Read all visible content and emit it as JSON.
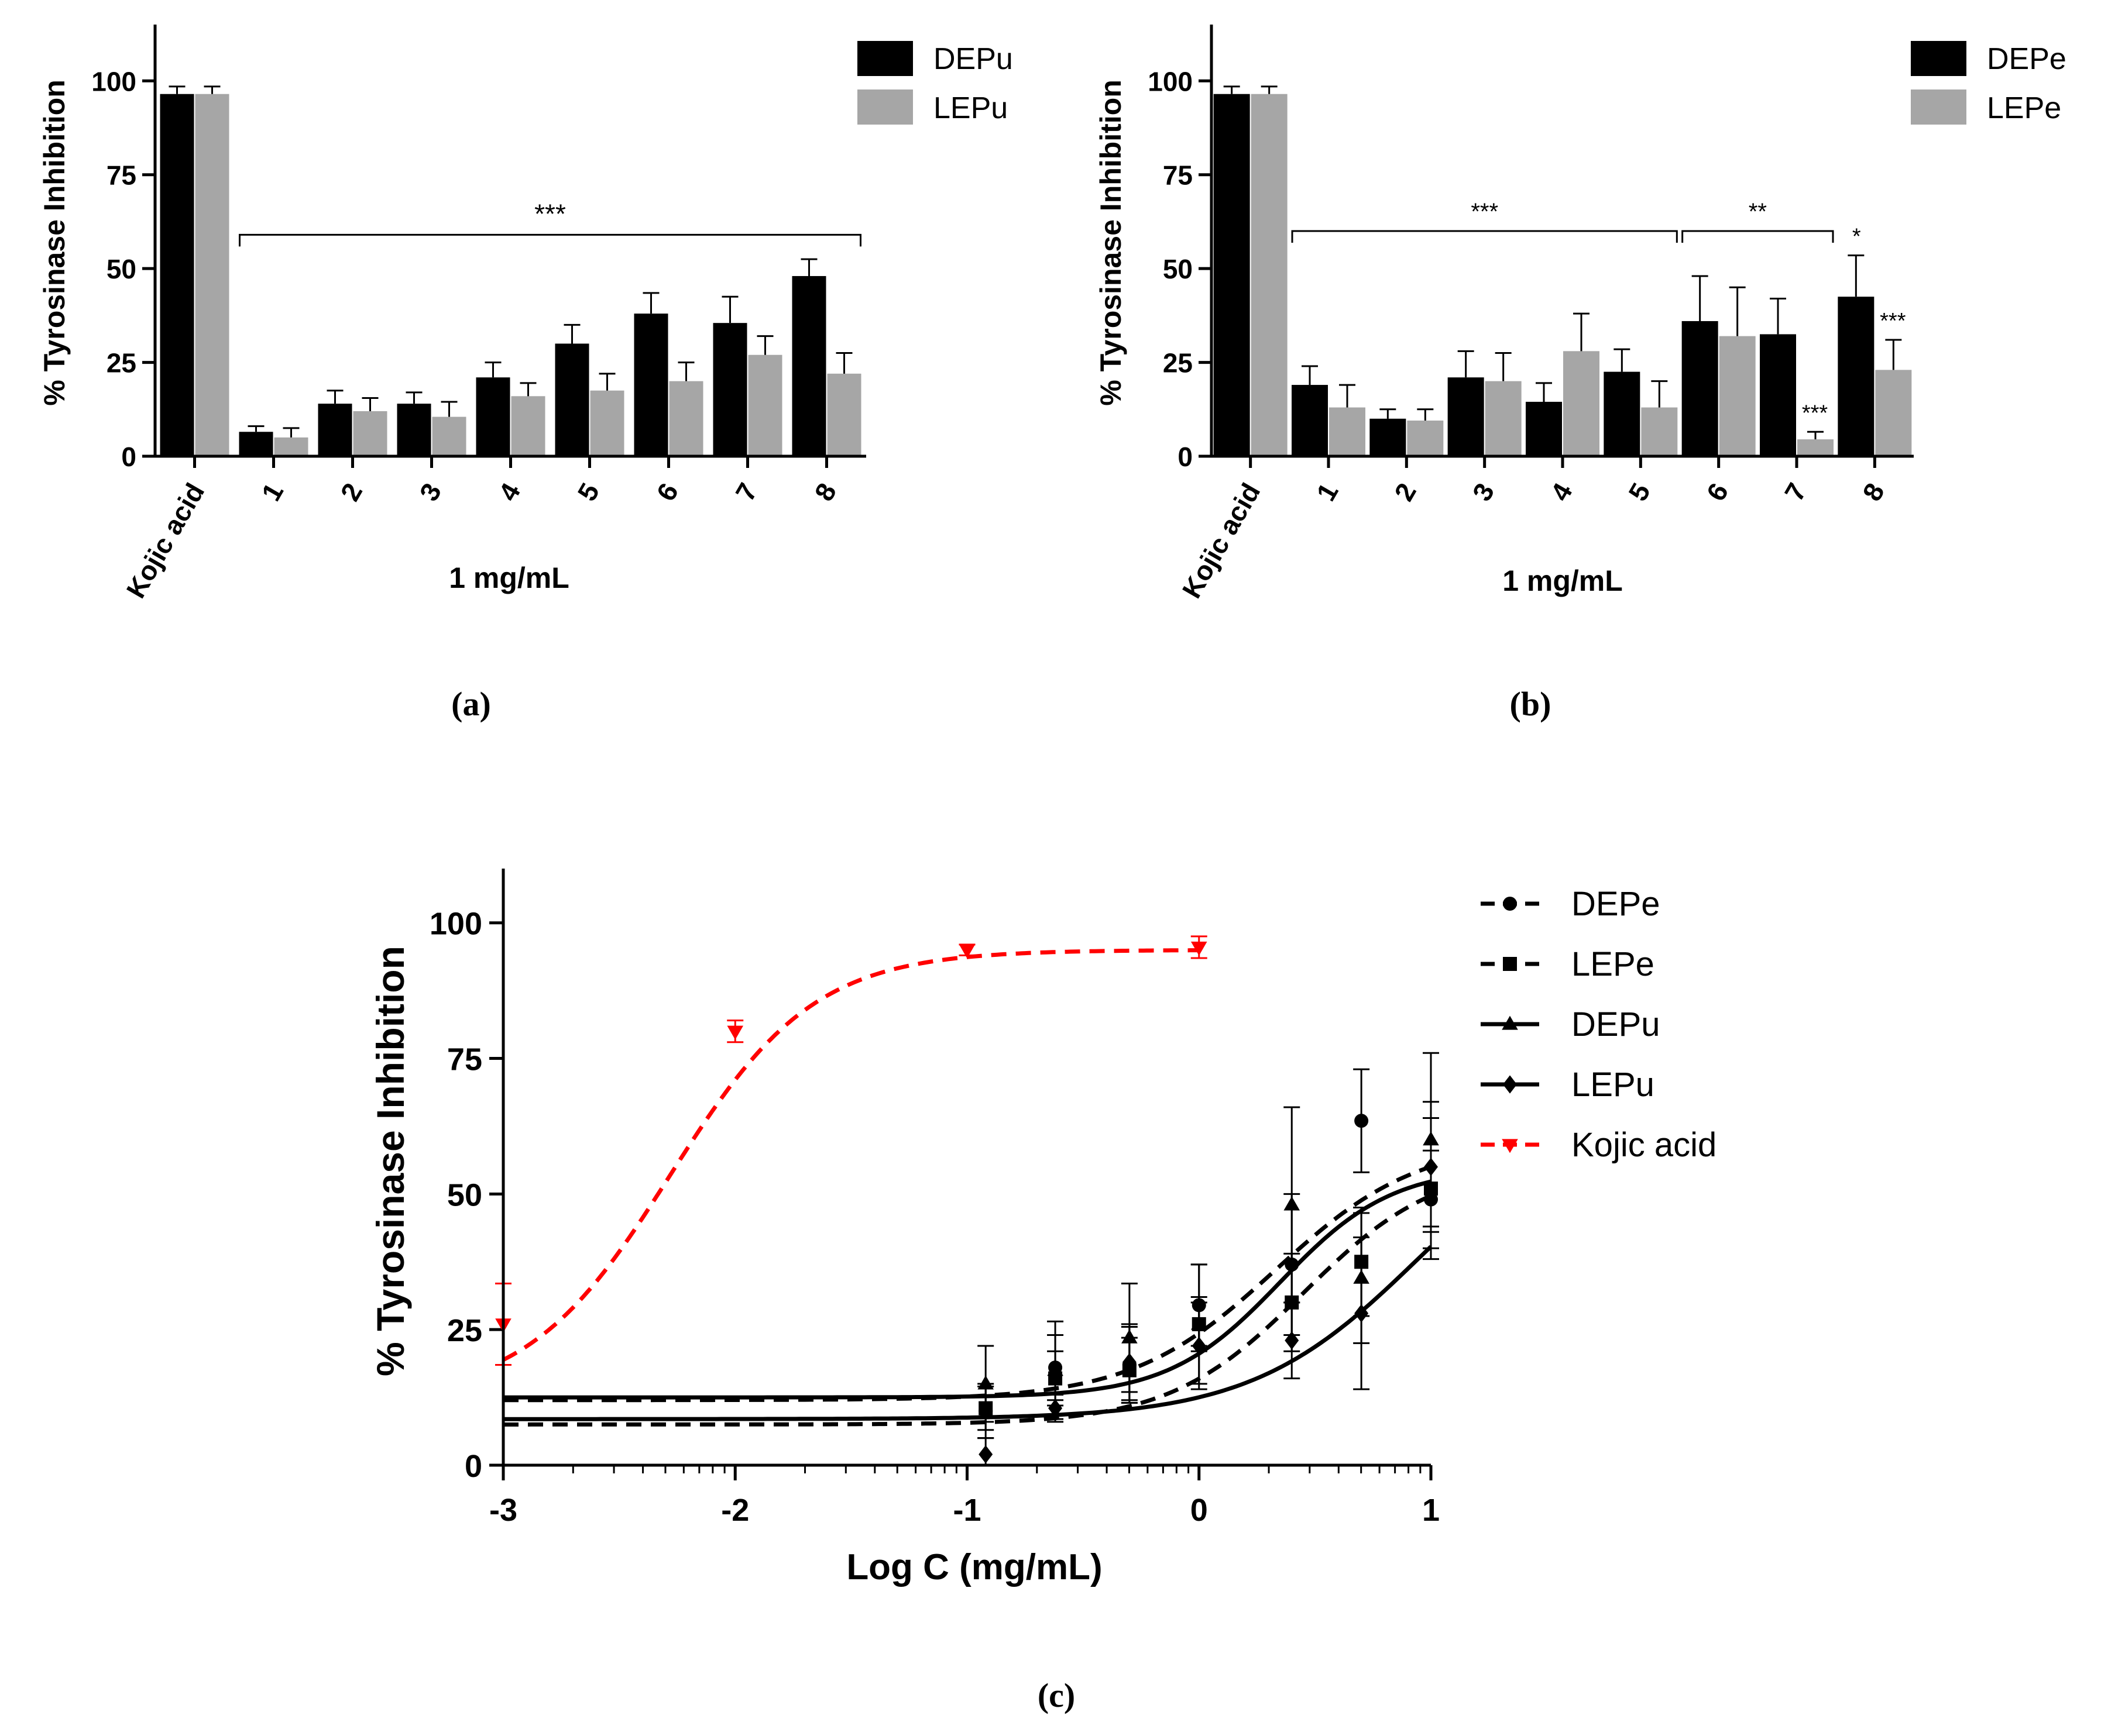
{
  "chart_data": [
    {
      "id": "a",
      "type": "bar",
      "caption": "(a)",
      "ylabel": "% Tyrosinase Inhibition",
      "xlabel": "1 mg/mL",
      "ylim": [
        0,
        115
      ],
      "yticks": [
        "0",
        "25",
        "50",
        "75",
        "100"
      ],
      "categories": [
        "Kojic acid",
        "1",
        "2",
        "3",
        "4",
        "5",
        "6",
        "7",
        "8"
      ],
      "series": [
        {
          "name": "DEPu",
          "color": "#000000",
          "values": [
            96.5,
            6.5,
            14,
            14,
            21,
            30,
            38,
            35.5,
            48
          ],
          "errors": [
            2,
            1.5,
            3.5,
            3,
            4,
            5,
            5.5,
            7,
            4.5
          ]
        },
        {
          "name": "LEPu",
          "color": "#a6a6a6",
          "values": [
            96.5,
            5,
            12,
            10.5,
            16,
            17.5,
            20,
            27,
            22
          ],
          "errors": [
            2,
            2.5,
            3.5,
            4,
            3.5,
            4.5,
            5,
            5,
            5.5
          ]
        }
      ],
      "annotations": [
        {
          "text": "***",
          "type": "bracket",
          "from": 1,
          "to": 8,
          "y": 59
        }
      ]
    },
    {
      "id": "b",
      "type": "bar",
      "caption": "(b)",
      "ylabel": "% Tyrosinase Inhibition",
      "xlabel": "1 mg/mL",
      "ylim": [
        0,
        115
      ],
      "yticks": [
        "0",
        "25",
        "50",
        "75",
        "100"
      ],
      "categories": [
        "Kojic acid",
        "1",
        "2",
        "3",
        "4",
        "5",
        "6",
        "7",
        "8"
      ],
      "series": [
        {
          "name": "DEPe",
          "color": "#000000",
          "values": [
            96.5,
            19,
            10,
            21,
            14.5,
            22.5,
            36,
            32.5,
            42.5
          ],
          "errors": [
            2,
            5,
            2.5,
            7,
            5,
            6,
            12,
            9.5,
            11
          ]
        },
        {
          "name": "LEPe",
          "color": "#a6a6a6",
          "values": [
            96.5,
            13,
            9.5,
            20,
            28,
            13,
            32,
            4.5,
            23
          ],
          "errors": [
            2,
            6,
            3,
            7.5,
            10,
            7,
            13,
            2,
            8
          ]
        }
      ],
      "annotations": [
        {
          "text": "***",
          "type": "bracket",
          "from": 1,
          "to": 5,
          "y": 60
        },
        {
          "text": "**",
          "type": "bracket",
          "from": 6,
          "to": 7,
          "y": 60
        },
        {
          "text": "*",
          "type": "label",
          "category": 8,
          "series": 0
        },
        {
          "text": "***",
          "type": "label",
          "category": 8,
          "series": 1
        },
        {
          "text": "***",
          "type": "label",
          "category": 7,
          "series": 1
        }
      ]
    },
    {
      "id": "c",
      "type": "line",
      "caption": "(c)",
      "ylabel": "% Tyrosinase Inhibition",
      "xlabel": "Log C (mg/mL)",
      "xlim": [
        -3,
        1
      ],
      "ylim": [
        0,
        110
      ],
      "xticks": [
        "-3",
        "-2",
        "-1",
        "0",
        "1"
      ],
      "yticks": [
        "0",
        "25",
        "50",
        "75",
        "100"
      ],
      "series": [
        {
          "name": "DEPe",
          "color": "#000000",
          "dash": "dashed",
          "marker": "circle",
          "points": [
            [
              -0.92,
              10
            ],
            [
              -0.62,
              18
            ],
            [
              -0.3,
              18.5
            ],
            [
              0,
              29.5
            ],
            [
              0.4,
              37
            ],
            [
              0.7,
              63.5
            ],
            [
              1,
              49
            ]
          ],
          "errors": [
            5,
            6,
            7,
            7.5,
            13,
            9.5,
            9
          ],
          "fit": {
            "bottom": 12,
            "top": 60,
            "logec50": 0.33,
            "hill": 1.4
          }
        },
        {
          "name": "LEPe",
          "color": "#000000",
          "dash": "dashed",
          "marker": "square",
          "points": [
            [
              -0.92,
              10.5
            ],
            [
              -0.62,
              16
            ],
            [
              -0.3,
              17.5
            ],
            [
              0,
              26
            ],
            [
              0.4,
              30
            ],
            [
              0.7,
              37.5
            ],
            [
              1,
              51
            ]
          ],
          "errors": [
            4,
            5,
            6,
            5,
            9,
            10,
            13
          ],
          "fit": {
            "bottom": 7.5,
            "top": 56,
            "logec50": 0.45,
            "hill": 1.5
          }
        },
        {
          "name": "DEPu",
          "color": "#000000",
          "dash": "solid",
          "marker": "triangle",
          "points": [
            [
              -0.92,
              15
            ],
            [
              -0.62,
              17.5
            ],
            [
              -0.3,
              23.5
            ],
            [
              0,
              26
            ],
            [
              0.4,
              48
            ],
            [
              0.7,
              34.5
            ],
            [
              1,
              60
            ]
          ],
          "errors": [
            7,
            9,
            10,
            11,
            18,
            12,
            16
          ],
          "fit": {
            "bottom": 12.5,
            "top": 55,
            "logec50": 0.35,
            "hill": 1.8
          }
        },
        {
          "name": "LEPu",
          "color": "#000000",
          "dash": "solid",
          "marker": "diamond",
          "points": [
            [
              -0.92,
              2
            ],
            [
              -0.62,
              10.5
            ],
            [
              -0.3,
              19
            ],
            [
              0,
              22
            ],
            [
              0.4,
              23
            ],
            [
              0.7,
              28
            ],
            [
              1,
              55
            ]
          ],
          "errors": [
            3,
            2.5,
            7,
            8,
            7,
            14,
            12
          ],
          "fit": {
            "bottom": 8.5,
            "top": 68,
            "logec50": 0.95,
            "hill": 1.2
          }
        },
        {
          "name": "Kojic acid",
          "color": "#ff0000",
          "dash": "dashed",
          "marker": "invtriangle",
          "points": [
            [
              -3,
              26
            ],
            [
              -2,
              80
            ],
            [
              -1,
              95
            ],
            [
              0,
              95.5
            ]
          ],
          "errors": [
            7.5,
            2,
            1,
            2
          ],
          "fit": {
            "bottom": 12,
            "top": 95,
            "logec50": -2.28,
            "hill": 1.4
          }
        }
      ]
    }
  ]
}
